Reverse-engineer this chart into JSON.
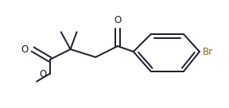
{
  "bg_color": "#ffffff",
  "line_color": "#1a1a2e",
  "bond_lw": 1.4,
  "figsize": [
    2.88,
    1.36
  ],
  "dpi": 100,
  "xlim": [
    0,
    288
  ],
  "ylim": [
    0,
    136
  ],
  "atoms": {
    "O1_label": "O",
    "O2_label": "O",
    "O3_label": "O",
    "Br_label": "Br"
  },
  "label_fontsize": 8.5,
  "Br_color": "#8B6914",
  "atom_color": "#1a1a2e"
}
